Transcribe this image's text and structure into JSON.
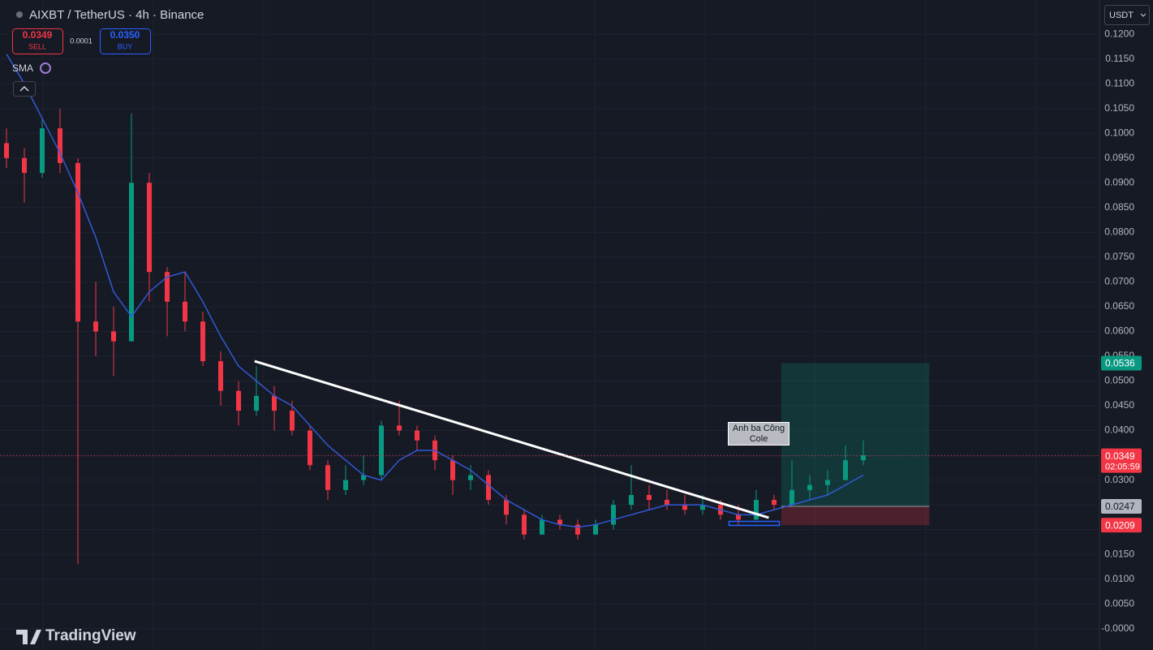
{
  "header": {
    "symbol": "AIXBT / TetherUS · 4h · Binance",
    "sell_price": "0.0349",
    "sell_label": "SELL",
    "spread": "0.0001",
    "buy_price": "0.0350",
    "buy_label": "BUY",
    "currency": "USDT",
    "brand": "TradingView"
  },
  "chart_data": {
    "type": "candlestick",
    "open": [
      0.098,
      0.095,
      0.092,
      0.101,
      0.094,
      0.062,
      0.06,
      0.058,
      0.09,
      0.072,
      0.066,
      0.062,
      0.054,
      0.048,
      0.044,
      0.047,
      0.044,
      0.04,
      0.033,
      0.028,
      0.03,
      0.031,
      0.041,
      0.04,
      0.038,
      0.034,
      0.03,
      0.031,
      0.026,
      0.023,
      0.019,
      0.022,
      0.021,
      0.019,
      0.021,
      0.025,
      0.027,
      0.026,
      0.025,
      0.024,
      0.025,
      0.023,
      0.022,
      0.026,
      0.025,
      0.028,
      0.029,
      0.03,
      0.034
    ],
    "high": [
      0.101,
      0.097,
      0.103,
      0.105,
      0.095,
      0.07,
      0.065,
      0.104,
      0.092,
      0.073,
      0.072,
      0.064,
      0.056,
      0.05,
      0.053,
      0.049,
      0.046,
      0.041,
      0.034,
      0.033,
      0.035,
      0.042,
      0.046,
      0.041,
      0.039,
      0.035,
      0.033,
      0.032,
      0.027,
      0.024,
      0.023,
      0.023,
      0.022,
      0.022,
      0.026,
      0.033,
      0.029,
      0.028,
      0.027,
      0.027,
      0.026,
      0.025,
      0.028,
      0.027,
      0.034,
      0.031,
      0.032,
      0.037,
      0.038
    ],
    "low": [
      0.093,
      0.086,
      0.091,
      0.092,
      0.013,
      0.055,
      0.051,
      0.058,
      0.066,
      0.059,
      0.06,
      0.053,
      0.045,
      0.041,
      0.043,
      0.04,
      0.039,
      0.032,
      0.026,
      0.027,
      0.029,
      0.03,
      0.039,
      0.036,
      0.032,
      0.027,
      0.028,
      0.025,
      0.021,
      0.018,
      0.019,
      0.02,
      0.018,
      0.019,
      0.02,
      0.024,
      0.024,
      0.024,
      0.023,
      0.023,
      0.022,
      0.021,
      0.022,
      0.024,
      0.025,
      0.026,
      0.027,
      0.03,
      0.033
    ],
    "close": [
      0.095,
      0.092,
      0.101,
      0.094,
      0.062,
      0.06,
      0.058,
      0.09,
      0.072,
      0.066,
      0.062,
      0.054,
      0.048,
      0.044,
      0.047,
      0.044,
      0.04,
      0.033,
      0.028,
      0.03,
      0.031,
      0.041,
      0.04,
      0.038,
      0.034,
      0.03,
      0.031,
      0.026,
      0.023,
      0.019,
      0.022,
      0.021,
      0.019,
      0.021,
      0.025,
      0.027,
      0.026,
      0.025,
      0.024,
      0.025,
      0.023,
      0.022,
      0.026,
      0.025,
      0.028,
      0.029,
      0.03,
      0.034,
      0.035
    ],
    "up_color": "#089981",
    "down_color": "#f23645",
    "sma": {
      "name": "SMA",
      "color": "#3059d6",
      "values": [
        0.116,
        0.11,
        0.103,
        0.096,
        0.088,
        0.079,
        0.068,
        0.063,
        0.068,
        0.071,
        0.072,
        0.066,
        0.059,
        0.053,
        0.05,
        0.047,
        0.045,
        0.041,
        0.037,
        0.034,
        0.031,
        0.03,
        0.034,
        0.036,
        0.036,
        0.034,
        0.032,
        0.029,
        0.026,
        0.024,
        0.022,
        0.021,
        0.0205,
        0.021,
        0.022,
        0.023,
        0.024,
        0.025,
        0.025,
        0.025,
        0.024,
        0.023,
        0.023,
        0.024,
        0.025,
        0.026,
        0.027,
        0.029,
        0.031
      ]
    },
    "trendline": {
      "color": "#ffffff",
      "x": [
        13.9,
        42.7
      ],
      "y": [
        0.054,
        0.0224
      ]
    },
    "position": {
      "x": [
        43.4,
        51.7
      ],
      "target": 0.0536,
      "entry": 0.0247,
      "stop": 0.0209,
      "target_color": "#089981",
      "stop_color": "#f23645"
    },
    "last_price": {
      "value": 0.0349,
      "countdown": "02:05:59"
    },
    "annotation": [
      "Anh ba Công",
      "Cole"
    ],
    "ylim": [
      -0.0043,
      0.1269
    ],
    "yticks": [
      {
        "value": 0.12,
        "label": "0.1200"
      },
      {
        "value": 0.115,
        "label": "0.1150"
      },
      {
        "value": 0.11,
        "label": "0.1100"
      },
      {
        "value": 0.105,
        "label": "0.1050"
      },
      {
        "value": 0.1,
        "label": "0.1000"
      },
      {
        "value": 0.095,
        "label": "0.0950"
      },
      {
        "value": 0.09,
        "label": "0.0900"
      },
      {
        "value": 0.085,
        "label": "0.0850"
      },
      {
        "value": 0.08,
        "label": "0.0800"
      },
      {
        "value": 0.075,
        "label": "0.0750"
      },
      {
        "value": 0.07,
        "label": "0.0700"
      },
      {
        "value": 0.065,
        "label": "0.0650"
      },
      {
        "value": 0.06,
        "label": "0.0600"
      },
      {
        "value": 0.055,
        "label": "0.0550"
      },
      {
        "value": 0.05,
        "label": "0.0500"
      },
      {
        "value": 0.045,
        "label": "0.0450"
      },
      {
        "value": 0.04,
        "label": "0.0400"
      },
      {
        "value": 0.035,
        "label": "0.0350"
      },
      {
        "value": 0.03,
        "label": "0.0300"
      },
      {
        "value": 0.025,
        "label": "0.0250"
      },
      {
        "value": 0.02,
        "label": "0.0200"
      },
      {
        "value": 0.015,
        "label": "0.0150"
      },
      {
        "value": 0.01,
        "label": "0.0100"
      },
      {
        "value": 0.005,
        "label": "0.0050"
      },
      {
        "value": 0,
        "label": "-0.0000"
      }
    ],
    "grid": true
  }
}
